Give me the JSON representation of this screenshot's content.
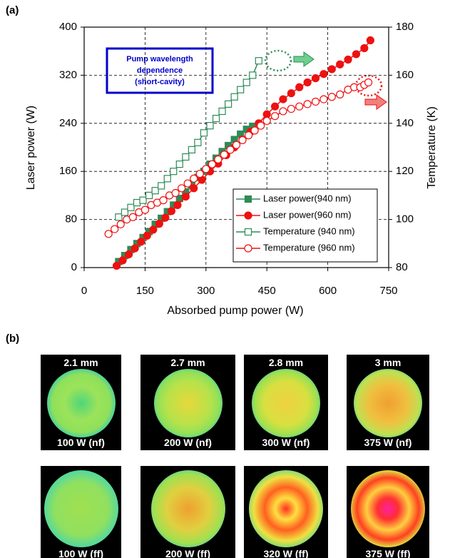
{
  "chart_data": {
    "type": "line",
    "xlabel": "Absorbed pump power (W)",
    "ylabel": "Laser power (W)",
    "y2label": "Temperature (K)",
    "annotation": [
      "Pump wavelength",
      "dependence",
      "(short-cavity)"
    ],
    "xlim": [
      0,
      750
    ],
    "xticks": [
      0,
      150,
      300,
      450,
      600,
      750
    ],
    "ylim": [
      0,
      400
    ],
    "yticks": [
      0,
      80,
      160,
      240,
      320,
      400
    ],
    "y2lim": [
      80,
      180
    ],
    "y2ticks": [
      80,
      100,
      120,
      140,
      160,
      180
    ],
    "grid": true,
    "legend": "lower right",
    "series": [
      {
        "name": "Laser power(940 nm)",
        "color": "#2e8b57",
        "marker": "square",
        "filled": true,
        "x": [
          85,
          100,
          115,
          130,
          145,
          160,
          175,
          190,
          205,
          220,
          235,
          250,
          265,
          280,
          295,
          310,
          325,
          340,
          355,
          370,
          385,
          400,
          415
        ],
        "values": [
          10,
          20,
          30,
          40,
          50,
          60,
          72,
          82,
          93,
          104,
          115,
          126,
          137,
          150,
          160,
          172,
          182,
          193,
          203,
          213,
          222,
          230,
          235
        ]
      },
      {
        "name": "Laser power(960 nm)",
        "color": "#ee1111",
        "marker": "circle",
        "filled": true,
        "x": [
          80,
          95,
          110,
          125,
          140,
          155,
          170,
          185,
          200,
          215,
          230,
          250,
          270,
          290,
          310,
          330,
          350,
          370,
          390,
          410,
          430,
          450,
          470,
          490,
          510,
          530,
          550,
          570,
          590,
          610,
          630,
          650,
          670,
          690,
          705
        ],
        "values": [
          3,
          12,
          22,
          32,
          43,
          53,
          63,
          73,
          83,
          94,
          104,
          118,
          132,
          146,
          160,
          173,
          187,
          200,
          213,
          226,
          240,
          255,
          268,
          280,
          290,
          300,
          308,
          315,
          322,
          330,
          338,
          346,
          355,
          365,
          378
        ]
      },
      {
        "name": "Temperature (940 nm)",
        "color": "#2e8b57",
        "marker": "square",
        "filled": false,
        "axis": "y2",
        "x": [
          85,
          100,
          115,
          130,
          145,
          160,
          175,
          190,
          205,
          220,
          235,
          250,
          265,
          280,
          295,
          310,
          325,
          340,
          355,
          370,
          385,
          400,
          415,
          430
        ],
        "values": [
          101,
          103,
          105,
          107,
          108,
          110,
          112,
          114,
          117,
          120,
          123,
          126,
          129,
          132,
          136,
          139,
          142,
          145,
          148,
          151,
          154,
          157,
          160,
          166
        ]
      },
      {
        "name": "Temperature (960 nm)",
        "color": "#ee1111",
        "marker": "circle",
        "filled": false,
        "axis": "y2",
        "x": [
          60,
          75,
          90,
          105,
          120,
          135,
          150,
          165,
          180,
          195,
          210,
          225,
          240,
          255,
          270,
          285,
          300,
          315,
          330,
          345,
          360,
          375,
          390,
          405,
          420,
          435,
          450,
          470,
          490,
          510,
          530,
          550,
          570,
          590,
          610,
          630,
          650,
          665,
          680,
          690,
          700
        ],
        "values": [
          94,
          96,
          98,
          100,
          101,
          103,
          104,
          106,
          107,
          108,
          110,
          111,
          113,
          115,
          117,
          119,
          121,
          123,
          125,
          127,
          129,
          131,
          133,
          135,
          137,
          139,
          141,
          143,
          145,
          146,
          147,
          148,
          149,
          150,
          151,
          152,
          154,
          155,
          155,
          156,
          157
        ]
      }
    ]
  },
  "panel_labels": [
    "(a)",
    "(b)"
  ],
  "images": {
    "near_field": [
      {
        "size": "2.1 mm",
        "power": "100 W (nf)"
      },
      {
        "size": "2.7 mm",
        "power": "200 W (nf)"
      },
      {
        "size": "2.8 mm",
        "power": "300 W (nf)"
      },
      {
        "size": "3 mm",
        "power": "375 W (nf)"
      }
    ],
    "far_field": [
      {
        "power": "100 W (ff)"
      },
      {
        "power": "200 W (ff)"
      },
      {
        "power": "320 W (ff)"
      },
      {
        "power": "375 W (ff)"
      }
    ]
  }
}
